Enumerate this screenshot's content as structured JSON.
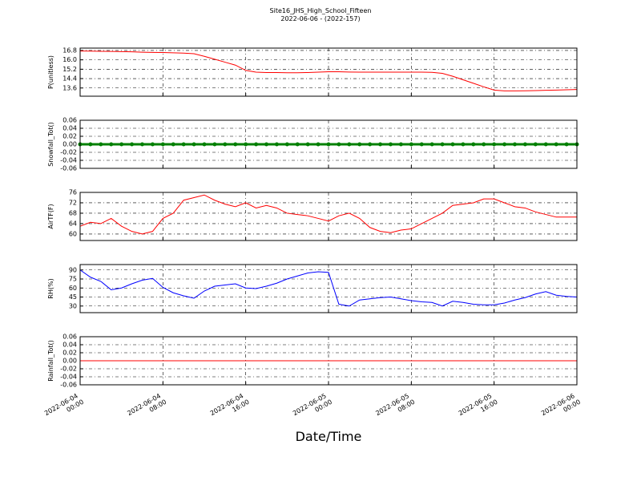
{
  "title": "Site16_JHS_High_School_Fifteen",
  "subtitle": "2022-06-06 - (2022-157)",
  "xlabel": "Date/Time",
  "xlim": [
    "2022-06-04 00:00",
    "2022-06-06 00:00"
  ],
  "xticks": [
    "2022-06-04 00:00",
    "2022-06-04 08:00",
    "2022-06-04 16:00",
    "2022-06-05 00:00",
    "2022-06-05 08:00",
    "2022-06-05 16:00",
    "2022-06-06 00:00"
  ],
  "x": [
    "2022-06-04 00:00",
    "2022-06-04 01:00",
    "2022-06-04 02:00",
    "2022-06-04 03:00",
    "2022-06-04 04:00",
    "2022-06-04 05:00",
    "2022-06-04 06:00",
    "2022-06-04 07:00",
    "2022-06-04 08:00",
    "2022-06-04 09:00",
    "2022-06-04 10:00",
    "2022-06-04 11:00",
    "2022-06-04 12:00",
    "2022-06-04 13:00",
    "2022-06-04 14:00",
    "2022-06-04 15:00",
    "2022-06-04 16:00",
    "2022-06-04 17:00",
    "2022-06-04 18:00",
    "2022-06-04 19:00",
    "2022-06-04 20:00",
    "2022-06-04 21:00",
    "2022-06-04 22:00",
    "2022-06-04 23:00",
    "2022-06-05 00:00",
    "2022-06-05 01:00",
    "2022-06-05 02:00",
    "2022-06-05 03:00",
    "2022-06-05 04:00",
    "2022-06-05 05:00",
    "2022-06-05 06:00",
    "2022-06-05 07:00",
    "2022-06-05 08:00",
    "2022-06-05 09:00",
    "2022-06-05 10:00",
    "2022-06-05 11:00",
    "2022-06-05 12:00",
    "2022-06-05 13:00",
    "2022-06-05 14:00",
    "2022-06-05 15:00",
    "2022-06-05 16:00",
    "2022-06-05 17:00",
    "2022-06-05 18:00",
    "2022-06-05 19:00",
    "2022-06-05 20:00",
    "2022-06-05 21:00",
    "2022-06-05 22:00",
    "2022-06-05 23:00",
    "2022-06-06 00:00"
  ],
  "chart_data": [
    {
      "type": "line",
      "ylabel": "P(unitless)",
      "ylim": [
        12.9,
        17.0
      ],
      "grid": true,
      "yticks": [
        13.6,
        14.4,
        15.2,
        {
          "value": 16,
          "label": "16.0"
        },
        16.8
      ],
      "series": [
        {
          "color": "#ff0000",
          "values": [
            16.75,
            16.74,
            16.73,
            16.72,
            16.7,
            16.68,
            16.65,
            16.63,
            16.62,
            16.6,
            16.57,
            16.52,
            16.3,
            16.05,
            15.8,
            15.55,
            15.1,
            14.95,
            14.92,
            14.92,
            14.9,
            14.9,
            14.92,
            14.95,
            14.98,
            14.98,
            14.96,
            14.95,
            14.95,
            14.95,
            14.95,
            14.95,
            14.95,
            14.95,
            14.93,
            14.85,
            14.6,
            14.3,
            14.0,
            13.7,
            13.42,
            13.35,
            13.35,
            13.36,
            13.38,
            13.4,
            13.42,
            13.45,
            13.47
          ]
        }
      ]
    },
    {
      "type": "line",
      "ylabel": "Snowfall_Tot()",
      "ylim": [
        -0.06,
        0.06
      ],
      "grid": true,
      "yticks": [
        -0.06,
        -0.04,
        -0.02,
        {
          "value": 0,
          "label": "0.00"
        },
        0.02,
        0.04,
        0.06
      ],
      "series": [
        {
          "color": "#007f00",
          "marker": "o",
          "values": [
            0,
            0,
            0,
            0,
            0,
            0,
            0,
            0,
            0,
            0,
            0,
            0,
            0,
            0,
            0,
            0,
            0,
            0,
            0,
            0,
            0,
            0,
            0,
            0,
            0,
            0,
            0,
            0,
            0,
            0,
            0,
            0,
            0,
            0,
            0,
            0,
            0,
            0,
            0,
            0,
            0,
            0,
            0,
            0,
            0,
            0,
            0,
            0,
            0
          ]
        }
      ]
    },
    {
      "type": "line",
      "ylabel": "AirTF(F)",
      "ylim": [
        57.5,
        76
      ],
      "grid": true,
      "yticks": [
        60,
        64,
        68,
        72,
        76
      ],
      "series": [
        {
          "color": "#ff0000",
          "values": [
            63,
            64.5,
            64,
            66,
            63,
            61,
            60,
            61,
            66,
            68,
            73,
            74,
            75,
            73,
            71.5,
            70.5,
            72,
            70,
            71,
            70,
            68,
            67.5,
            67,
            66,
            65,
            67,
            68,
            66,
            62.5,
            61,
            60.5,
            61.5,
            62,
            64,
            66,
            68,
            71,
            71.5,
            72,
            73.5,
            73.5,
            72,
            70.5,
            70,
            68.5,
            67.5,
            66.5,
            66.5,
            66.5
          ]
        }
      ]
    },
    {
      "type": "line",
      "ylabel": "RH(%)",
      "ylim": [
        19,
        99
      ],
      "grid": true,
      "yticks": [
        30,
        45,
        60,
        75,
        90
      ],
      "series": [
        {
          "color": "#0000ff",
          "values": [
            90,
            78,
            71,
            57,
            60,
            67,
            73,
            76,
            61,
            52,
            47,
            43,
            55,
            63,
            65,
            67,
            60,
            59,
            63,
            68,
            75,
            80,
            85,
            87,
            86,
            33,
            30,
            40,
            42,
            44,
            45,
            42,
            39,
            37,
            36,
            30,
            38,
            36,
            33,
            32,
            32,
            35,
            40,
            44,
            50,
            54,
            48,
            46,
            45
          ]
        }
      ]
    },
    {
      "type": "line",
      "ylabel": "Rainfall_Tot()",
      "ylim": [
        -0.06,
        0.06
      ],
      "grid": true,
      "yticks": [
        -0.06,
        -0.04,
        -0.02,
        {
          "value": 0,
          "label": "0.00"
        },
        0.02,
        0.04,
        0.06
      ],
      "series": [
        {
          "color": "#ff0000",
          "values": [
            0,
            0,
            0,
            0,
            0,
            0,
            0,
            0,
            0,
            0,
            0,
            0,
            0,
            0,
            0,
            0,
            0,
            0,
            0,
            0,
            0,
            0,
            0,
            0,
            0,
            0,
            0,
            0,
            0,
            0,
            0,
            0,
            0,
            0,
            0,
            0,
            0,
            0,
            0,
            0,
            0,
            0,
            0,
            0,
            0,
            0,
            0,
            0,
            0
          ]
        }
      ]
    }
  ]
}
